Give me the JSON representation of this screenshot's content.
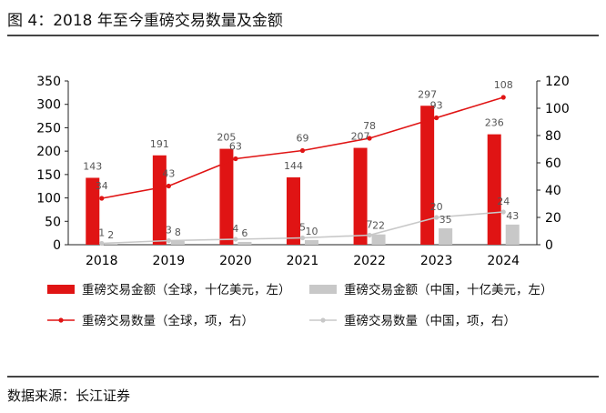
{
  "figure_title": "图 4：2018 年至今重磅交易数量及金额",
  "source": "数据来源：长江证券",
  "chart_data": {
    "type": "bar",
    "title": "2018 年至今重磅交易数量及金额",
    "categories": [
      "2018",
      "2019",
      "2020",
      "2021",
      "2022",
      "2023",
      "2024"
    ],
    "y_left": {
      "min": 0,
      "max": 350,
      "ticks": [
        "0",
        "50",
        "100",
        "150",
        "200",
        "250",
        "300",
        "350"
      ]
    },
    "y_right": {
      "min": 0,
      "max": 120,
      "ticks": [
        "0",
        "20",
        "40",
        "60",
        "80",
        "100",
        "120"
      ]
    },
    "series": [
      {
        "name": "重磅交易金额（全球，十亿美元，左）",
        "type": "bar",
        "axis": "left",
        "color": "#e01414",
        "values": [
          143,
          191,
          205,
          144,
          207,
          297,
          236
        ],
        "labels": [
          "143",
          "191",
          "205",
          "144",
          "207",
          "297",
          "236"
        ]
      },
      {
        "name": "重磅交易金额（中国，十亿美元，左）",
        "type": "bar",
        "axis": "left",
        "color": "#c8c8c8",
        "values": [
          2,
          8,
          6,
          10,
          22,
          35,
          43
        ],
        "labels": [
          "2",
          "8",
          "6",
          "10",
          "22",
          "35",
          "43"
        ]
      },
      {
        "name": "重磅交易数量（全球，项，右）",
        "type": "line",
        "axis": "right",
        "color": "#e01414",
        "values": [
          34,
          43,
          63,
          69,
          78,
          93,
          108
        ],
        "labels": [
          "34",
          "43",
          "63",
          "69",
          "78",
          "93",
          "108"
        ]
      },
      {
        "name": "重磅交易数量（中国，项，右）",
        "type": "line",
        "axis": "right",
        "color": "#c8c8c8",
        "values": [
          1,
          3,
          4,
          5,
          7,
          20,
          24
        ],
        "labels": [
          "1",
          "3",
          "4",
          "5",
          "7",
          "20",
          "24"
        ]
      }
    ]
  }
}
